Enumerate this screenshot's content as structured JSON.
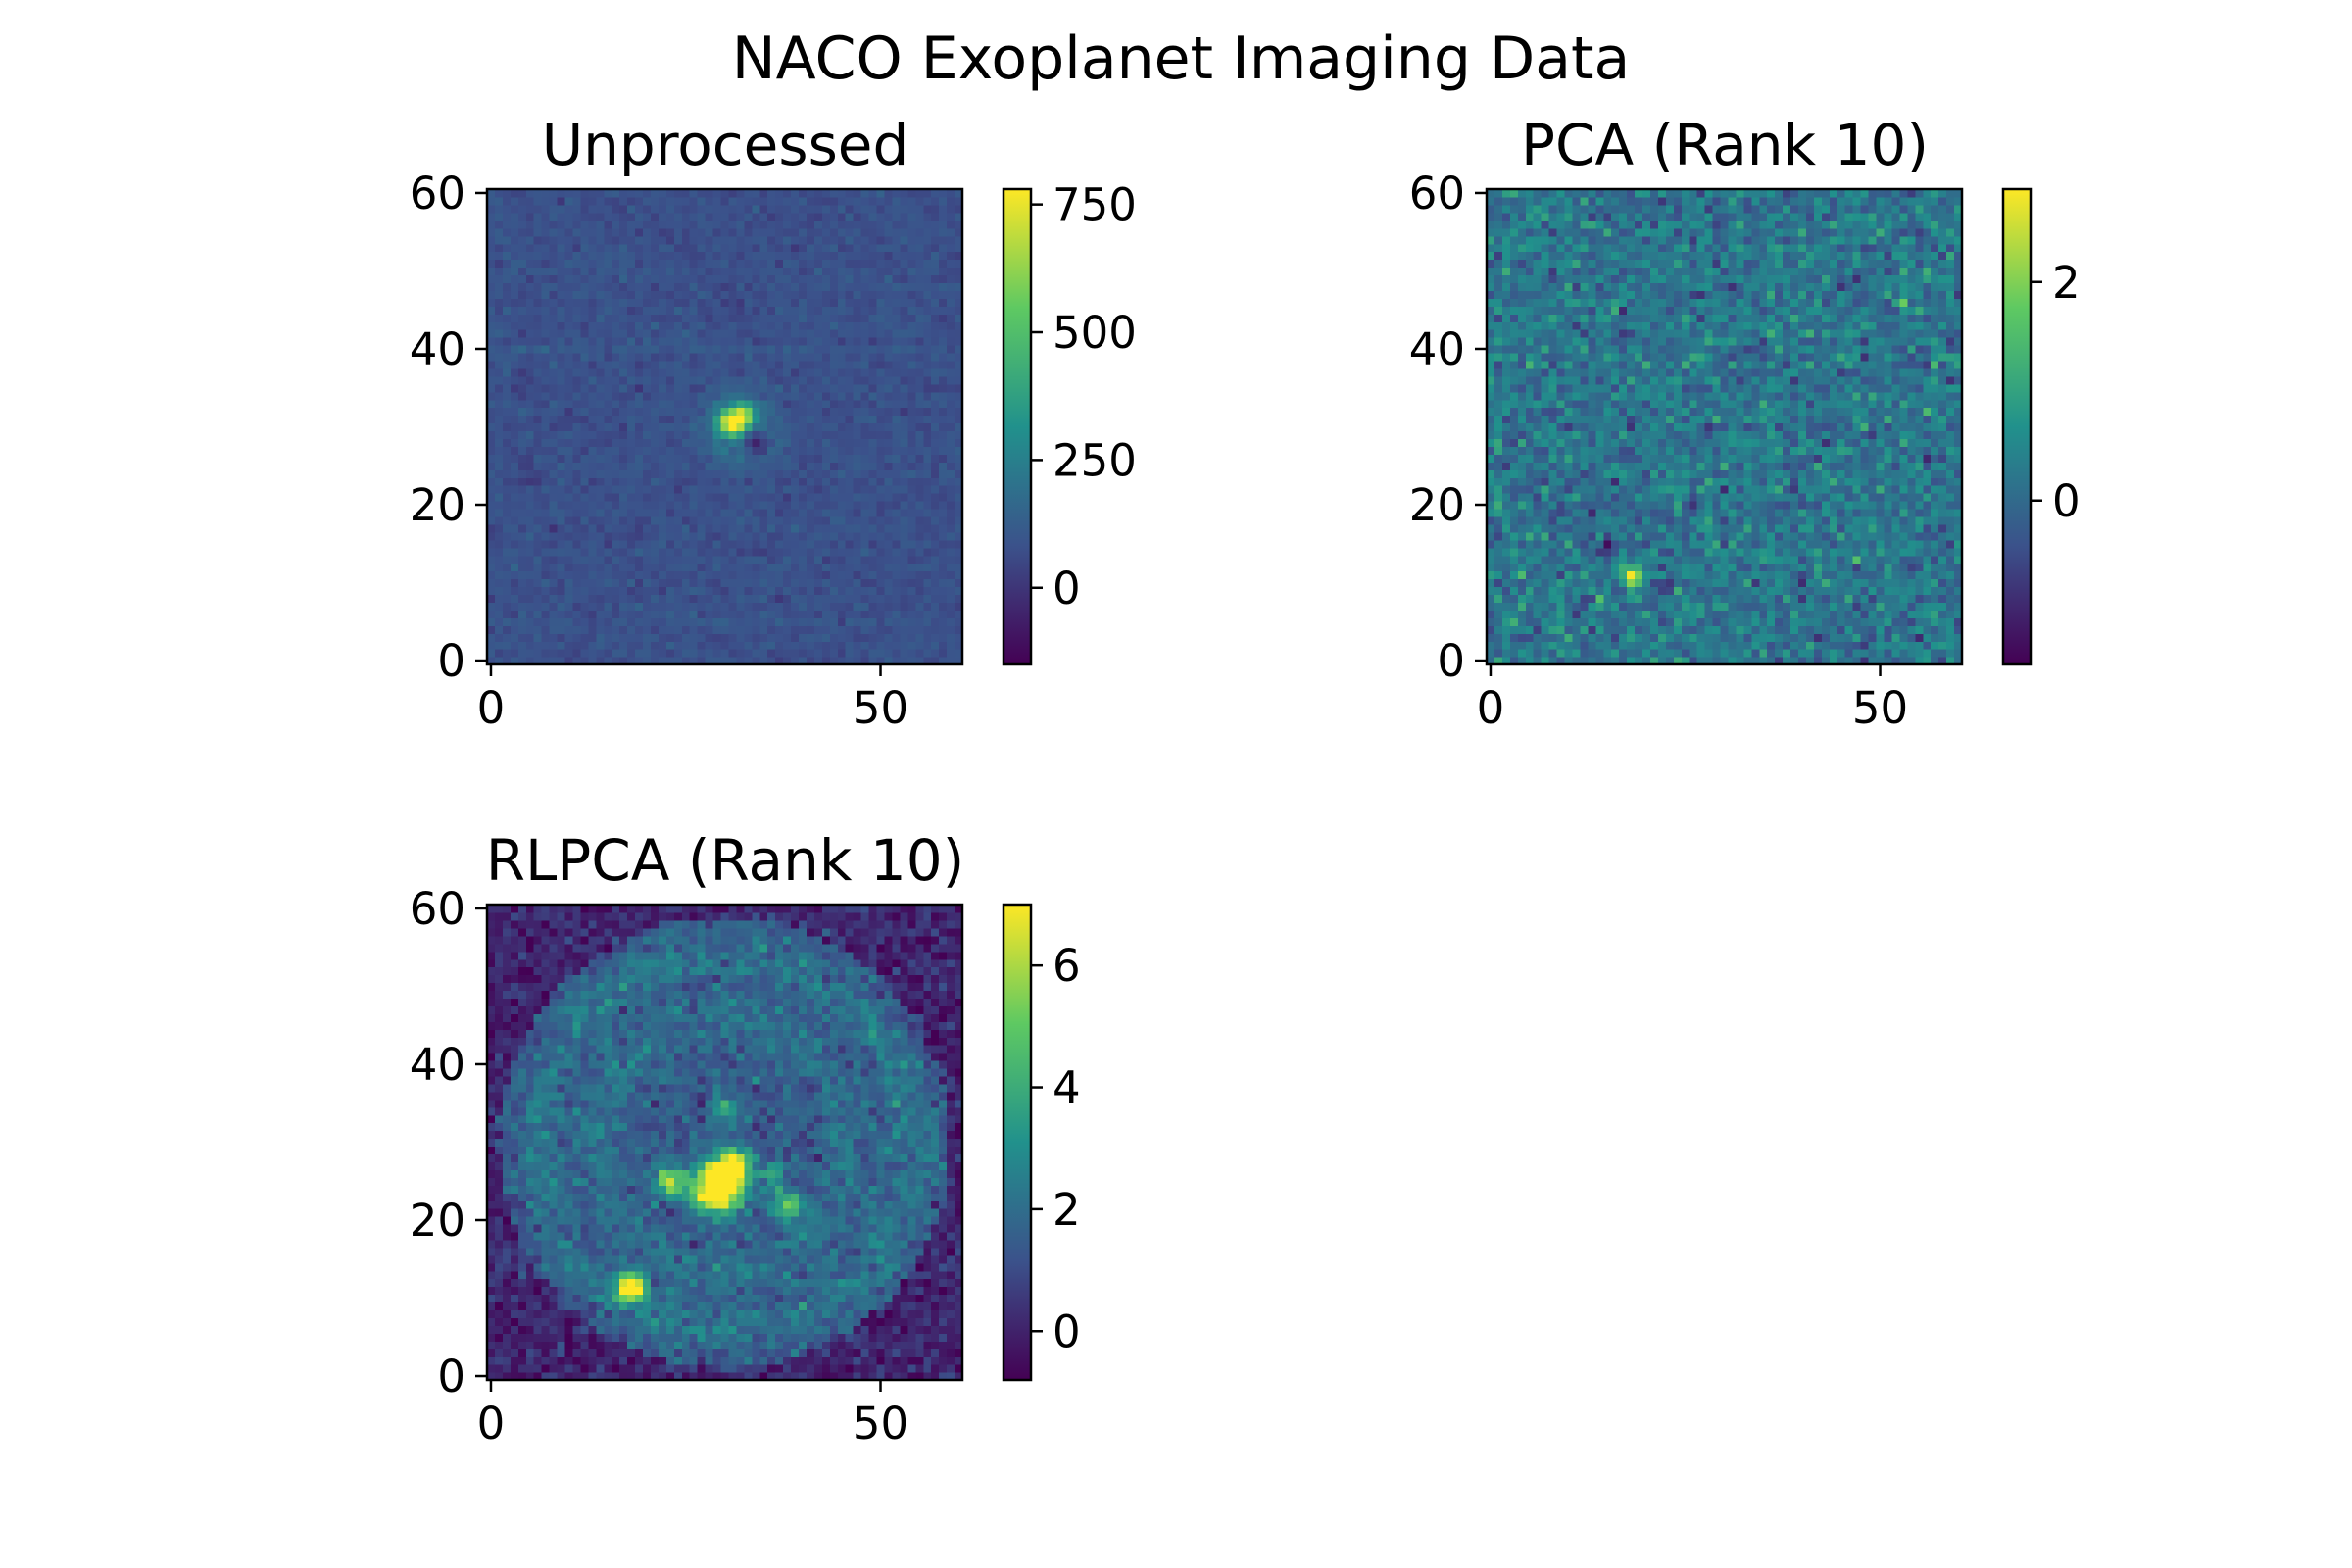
{
  "chart_data": {
    "type": "heatmap",
    "title": "NACO Exoplanet Imaging Data",
    "colormap": "viridis",
    "colormap_stops": [
      "#440154",
      "#3b528b",
      "#21918c",
      "#5ec962",
      "#fde725"
    ],
    "grid": false,
    "axes_color": "#000000",
    "background_color": "#ffffff",
    "panels": [
      {
        "title": "Unprocessed",
        "image_size": 61,
        "xlim": [
          -0.5,
          60.5
        ],
        "ylim": [
          -0.5,
          60.5
        ],
        "xticks": [
          0,
          50
        ],
        "yticks": [
          0,
          20,
          40,
          60
        ],
        "vmin": -150,
        "vmax": 780,
        "colorbar_ticks": [
          0,
          250,
          500,
          750
        ],
        "background_level": 80,
        "noise_amplitude": 22,
        "features": [
          {
            "kind": "peak",
            "x": 31,
            "y": 30.5,
            "sigma": 1.2,
            "amplitude": 760
          },
          {
            "kind": "peak",
            "x": 32.5,
            "y": 31.5,
            "sigma": 1.0,
            "amplitude": 420
          },
          {
            "kind": "peak",
            "x": 34,
            "y": 28,
            "sigma": 1.0,
            "amplitude": -230
          },
          {
            "kind": "ring",
            "x": 32,
            "y": 30,
            "radius": 3.5,
            "width": 1.6,
            "amplitude": 90
          },
          {
            "kind": "peak",
            "x": 5,
            "y": 24,
            "sigma": 1.4,
            "amplitude": -45
          },
          {
            "kind": "peak",
            "x": 14,
            "y": 30,
            "sigma": 1.3,
            "amplitude": -35
          },
          {
            "kind": "hband",
            "y": 40,
            "amplitude": 25
          },
          {
            "kind": "hband",
            "y": 5,
            "amplitude": 20
          }
        ]
      },
      {
        "title": "PCA (Rank 10)",
        "image_size": 61,
        "xlim": [
          -0.5,
          60.5
        ],
        "ylim": [
          -0.5,
          60.5
        ],
        "xticks": [
          0,
          50
        ],
        "yticks": [
          0,
          20,
          40,
          60
        ],
        "vmin": -1.5,
        "vmax": 2.85,
        "colorbar_ticks": [
          0,
          2
        ],
        "background_level": 0.2,
        "noise_amplitude": 0.38,
        "features": [
          {
            "kind": "peak",
            "x": 18,
            "y": 11,
            "sigma": 0.9,
            "amplitude": 2.7
          },
          {
            "kind": "peak",
            "x": 15,
            "y": 14.5,
            "sigma": 0.8,
            "amplitude": -1.5
          },
          {
            "kind": "peak",
            "x": 22,
            "y": 9,
            "sigma": 0.8,
            "amplitude": -1.4
          },
          {
            "kind": "peak",
            "x": 33,
            "y": 50,
            "sigma": 0.6,
            "amplitude": -1.2
          },
          {
            "kind": "peak",
            "x": 26,
            "y": 20,
            "sigma": 0.7,
            "amplitude": -0.9
          }
        ]
      },
      {
        "title": "RLPCA (Rank 10)",
        "image_size": 61,
        "xlim": [
          -0.5,
          60.5
        ],
        "ylim": [
          -0.5,
          60.5
        ],
        "xticks": [
          0,
          50
        ],
        "yticks": [
          0,
          20,
          40,
          60
        ],
        "vmin": -0.8,
        "vmax": 7.0,
        "colorbar_ticks": [
          0,
          2,
          4,
          6
        ],
        "background_level": 0.1,
        "noise_amplitude": 0.5,
        "features": [
          {
            "kind": "disk",
            "x": 30,
            "y": 30,
            "radius": 29,
            "amplitude": 1.3
          },
          {
            "kind": "ring",
            "x": 30,
            "y": 30,
            "radius": 24,
            "width": 2.0,
            "amplitude": 0.8
          },
          {
            "kind": "ring",
            "x": 30,
            "y": 30,
            "radius": 16,
            "width": 2.0,
            "amplitude": 0.7
          },
          {
            "kind": "peak",
            "x": 29,
            "y": 24,
            "sigma": 2.2,
            "amplitude": 8.0
          },
          {
            "kind": "peak",
            "x": 31,
            "y": 27,
            "sigma": 1.6,
            "amplitude": 6.0
          },
          {
            "kind": "peak",
            "x": 23,
            "y": 25,
            "sigma": 1.3,
            "amplitude": 5.0
          },
          {
            "kind": "peak",
            "x": 38,
            "y": 22,
            "sigma": 1.3,
            "amplitude": 3.6
          },
          {
            "kind": "peak",
            "x": 36,
            "y": 26,
            "sigma": 1.1,
            "amplitude": 2.6
          },
          {
            "kind": "peak",
            "x": 30,
            "y": 34,
            "sigma": 1.3,
            "amplitude": 2.2
          },
          {
            "kind": "peak",
            "x": 18,
            "y": 11.5,
            "sigma": 1.2,
            "amplitude": 8.0
          }
        ]
      }
    ]
  }
}
